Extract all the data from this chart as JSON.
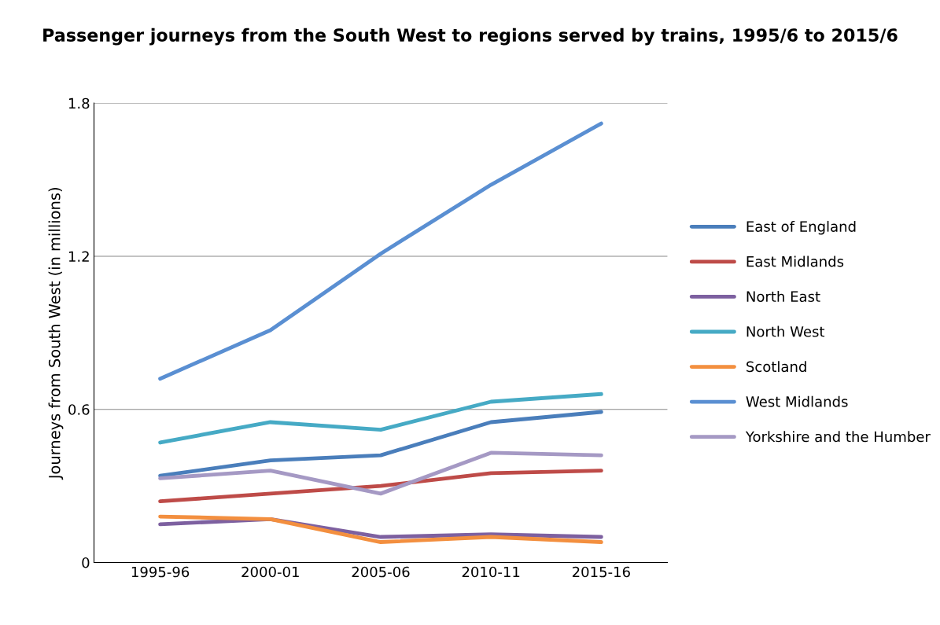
{
  "chart_data": {
    "type": "line",
    "title": "Passenger journeys from the South West to regions served by trains, 1995/6 to 2015/6",
    "ylabel": "Journeys from South West (in millions)",
    "categories": [
      "1995-96",
      "2000-01",
      "2005-06",
      "2010-11",
      "2015-16"
    ],
    "series": [
      {
        "name": "East of England",
        "color": "#4a7ebb",
        "values": [
          0.34,
          0.4,
          0.42,
          0.55,
          0.59
        ]
      },
      {
        "name": "East Midlands",
        "color": "#be4b48",
        "values": [
          0.24,
          0.27,
          0.3,
          0.35,
          0.36
        ]
      },
      {
        "name": "North East",
        "color": "#7d60a0",
        "values": [
          0.15,
          0.17,
          0.1,
          0.11,
          0.1
        ]
      },
      {
        "name": "North West",
        "color": "#46aac5",
        "values": [
          0.47,
          0.55,
          0.52,
          0.63,
          0.66
        ]
      },
      {
        "name": "Scotland",
        "color": "#f38f3f",
        "values": [
          0.18,
          0.17,
          0.08,
          0.1,
          0.08
        ]
      },
      {
        "name": "West Midlands",
        "color": "#5a8fd2",
        "values": [
          0.72,
          0.91,
          1.21,
          1.48,
          1.72
        ]
      },
      {
        "name": "Yorkshire and the Humber",
        "color": "#a599c4",
        "values": [
          0.33,
          0.36,
          0.27,
          0.43,
          0.42
        ]
      }
    ],
    "ylim": [
      0,
      1.8
    ],
    "yticks": [
      0,
      0.6,
      1.2,
      1.8
    ],
    "grid": "y",
    "legend": "right",
    "marker": "none",
    "line_style": "solid"
  }
}
